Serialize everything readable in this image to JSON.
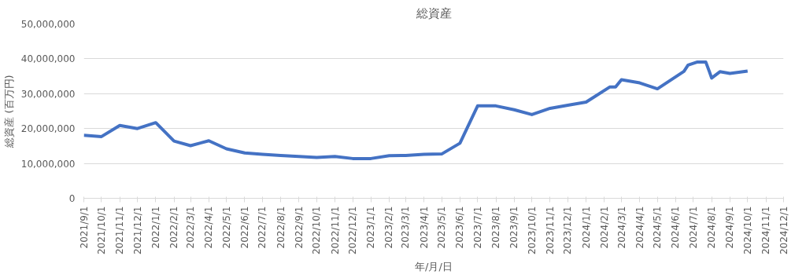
{
  "chart_data": {
    "type": "line",
    "title": "総資産",
    "xlabel": "年/月/日",
    "ylabel": "総資産 (百万円)",
    "x": [
      "2021-09-01",
      "2021-10-01",
      "2021-11-01",
      "2021-12-01",
      "2022-01-01",
      "2022-02-01",
      "2022-03-01",
      "2022-04-01",
      "2022-05-01",
      "2022-06-01",
      "2022-07-01",
      "2022-08-01",
      "2022-09-01",
      "2022-10-01",
      "2022-11-01",
      "2022-12-01",
      "2023-01-01",
      "2023-02-01",
      "2023-03-01",
      "2023-04-01",
      "2023-05-01",
      "2023-06-01",
      "2023-07-01",
      "2023-08-01",
      "2023-09-01",
      "2023-10-01",
      "2023-11-01",
      "2023-12-01",
      "2024-01-01",
      "2024-02-10",
      "2024-02-20",
      "2024-03-01",
      "2024-04-01",
      "2024-05-01",
      "2024-06-15",
      "2024-06-22",
      "2024-07-08",
      "2024-07-22",
      "2024-07-28",
      "2024-08-01",
      "2024-08-15",
      "2024-09-01",
      "2024-10-01"
    ],
    "series": [
      {
        "color": "#4472c4",
        "values": [
          18100000,
          17700000,
          20900000,
          20000000,
          21700000,
          16400000,
          15100000,
          16500000,
          14200000,
          13000000,
          12600000,
          12300000,
          12000000,
          11700000,
          12000000,
          11400000,
          11400000,
          12200000,
          12300000,
          12600000,
          12700000,
          15800000,
          26500000,
          26500000,
          25400000,
          24000000,
          25800000,
          26700000,
          27600000,
          31900000,
          31900000,
          34000000,
          33100000,
          31400000,
          36400000,
          38200000,
          39100000,
          39100000,
          36400000,
          34500000,
          36300000,
          35800000,
          36500000
        ]
      }
    ],
    "ylim": [
      0,
      50000000
    ],
    "yticks": [
      {
        "value": 0,
        "label": "0"
      },
      {
        "value": 10000000,
        "label": "10,000,000"
      },
      {
        "value": 20000000,
        "label": "20,000,000"
      },
      {
        "value": 30000000,
        "label": "30,000,000"
      },
      {
        "value": 40000000,
        "label": "40,000,000"
      },
      {
        "value": 50000000,
        "label": "50,000,000"
      }
    ],
    "xlim": [
      "2021-09-01",
      "2024-12-01"
    ],
    "xticks": [
      {
        "value": "2021-09-01",
        "label": "2021/9/1"
      },
      {
        "value": "2021-10-01",
        "label": "2021/10/1"
      },
      {
        "value": "2021-11-01",
        "label": "2021/11/1"
      },
      {
        "value": "2021-12-01",
        "label": "2021/12/1"
      },
      {
        "value": "2022-01-01",
        "label": "2022/1/1"
      },
      {
        "value": "2022-02-01",
        "label": "2022/2/1"
      },
      {
        "value": "2022-03-01",
        "label": "2022/3/1"
      },
      {
        "value": "2022-04-01",
        "label": "2022/4/1"
      },
      {
        "value": "2022-05-01",
        "label": "2022/5/1"
      },
      {
        "value": "2022-06-01",
        "label": "2022/6/1"
      },
      {
        "value": "2022-07-01",
        "label": "2022/7/1"
      },
      {
        "value": "2022-08-01",
        "label": "2022/8/1"
      },
      {
        "value": "2022-09-01",
        "label": "2022/9/1"
      },
      {
        "value": "2022-10-01",
        "label": "2022/10/1"
      },
      {
        "value": "2022-11-01",
        "label": "2022/11/1"
      },
      {
        "value": "2022-12-01",
        "label": "2022/12/1"
      },
      {
        "value": "2023-01-01",
        "label": "2023/1/1"
      },
      {
        "value": "2023-02-01",
        "label": "2023/2/1"
      },
      {
        "value": "2023-03-01",
        "label": "2023/3/1"
      },
      {
        "value": "2023-04-01",
        "label": "2023/4/1"
      },
      {
        "value": "2023-05-01",
        "label": "2023/5/1"
      },
      {
        "value": "2023-06-01",
        "label": "2023/6/1"
      },
      {
        "value": "2023-07-01",
        "label": "2023/7/1"
      },
      {
        "value": "2023-08-01",
        "label": "2023/8/1"
      },
      {
        "value": "2023-09-01",
        "label": "2023/9/1"
      },
      {
        "value": "2023-10-01",
        "label": "2023/10/1"
      },
      {
        "value": "2023-11-01",
        "label": "2023/11/1"
      },
      {
        "value": "2023-12-01",
        "label": "2023/12/1"
      },
      {
        "value": "2024-01-01",
        "label": "2024/1/1"
      },
      {
        "value": "2024-02-01",
        "label": "2024/2/1"
      },
      {
        "value": "2024-03-01",
        "label": "2024/3/1"
      },
      {
        "value": "2024-04-01",
        "label": "2024/4/1"
      },
      {
        "value": "2024-05-01",
        "label": "2024/5/1"
      },
      {
        "value": "2024-06-01",
        "label": "2024/6/1"
      },
      {
        "value": "2024-07-01",
        "label": "2024/7/1"
      },
      {
        "value": "2024-08-01",
        "label": "2024/8/1"
      },
      {
        "value": "2024-09-01",
        "label": "2024/9/1"
      },
      {
        "value": "2024-10-01",
        "label": "2024/10/1"
      },
      {
        "value": "2024-11-01",
        "label": "2024/11/1"
      },
      {
        "value": "2024-12-01",
        "label": "2024/12/1"
      }
    ],
    "grid": "y",
    "marker": "none",
    "line_style": "solid"
  }
}
